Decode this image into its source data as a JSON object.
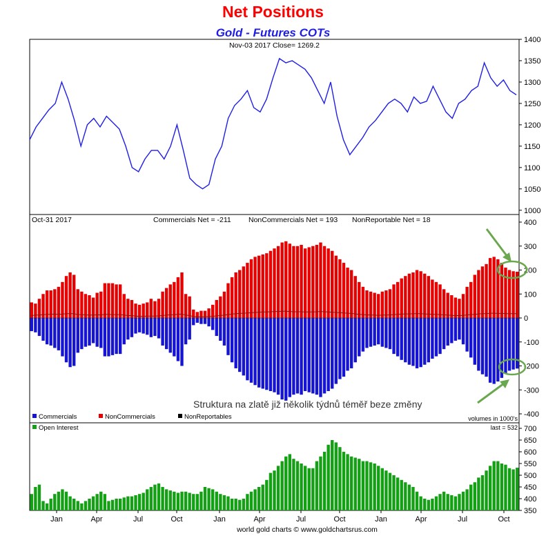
{
  "chart_data": [
    {
      "type": "line",
      "title": "Net Positions",
      "subtitle": "Gold - Futures COTs",
      "header": "Nov-03  2017    Close= 1269.2",
      "ylim": [
        990,
        1400
      ],
      "yticks": [
        1000,
        1050,
        1100,
        1150,
        1200,
        1250,
        1300,
        1350,
        1400
      ],
      "xticks": [
        "Jan",
        "Apr",
        "Jul",
        "Oct",
        "Jan",
        "Apr",
        "Jul",
        "Oct",
        "Jan",
        "Apr",
        "Jul",
        "Oct"
      ],
      "series": [
        {
          "values": [
            1165,
            1195,
            1215,
            1235,
            1250,
            1300,
            1260,
            1210,
            1150,
            1200,
            1215,
            1195,
            1220,
            1205,
            1190,
            1150,
            1100,
            1090,
            1120,
            1140,
            1140,
            1120,
            1150,
            1200,
            1140,
            1075,
            1060,
            1050,
            1060,
            1120,
            1150,
            1215,
            1245,
            1260,
            1280,
            1240,
            1230,
            1260,
            1310,
            1355,
            1345,
            1350,
            1340,
            1330,
            1310,
            1280,
            1250,
            1300,
            1220,
            1165,
            1130,
            1150,
            1170,
            1195,
            1210,
            1230,
            1250,
            1260,
            1250,
            1230,
            1265,
            1250,
            1255,
            1290,
            1260,
            1230,
            1215,
            1250,
            1260,
            1280,
            1290,
            1345,
            1310,
            1290,
            1305,
            1280,
            1270
          ],
          "color": "#1e1ee6"
        }
      ]
    },
    {
      "type": "bar",
      "header_left": "Oct-31  2017",
      "header_labels": [
        "Commercials Net = -211",
        "NonCommercials Net = 193",
        "NonReportable Net = 18"
      ],
      "ylim": [
        -400,
        400
      ],
      "yticks": [
        -400,
        -300,
        -200,
        -100,
        0,
        100,
        200,
        300,
        400
      ],
      "legend": [
        "Commercials",
        "NonCommercials",
        "NonReportables"
      ],
      "note": "volumes in 1000's",
      "annotation": "Struktura na zlatě již několik týdnů téměř beze změny",
      "series": [
        {
          "name": "NonCommercials",
          "color": "#e60000",
          "values": [
            65,
            60,
            80,
            100,
            115,
            115,
            120,
            130,
            150,
            175,
            190,
            180,
            120,
            110,
            100,
            95,
            85,
            105,
            110,
            145,
            145,
            145,
            140,
            140,
            100,
            80,
            75,
            60,
            55,
            60,
            65,
            80,
            70,
            80,
            110,
            125,
            140,
            150,
            170,
            190,
            100,
            90,
            35,
            25,
            30,
            30,
            40,
            55,
            75,
            90,
            110,
            145,
            170,
            190,
            200,
            215,
            230,
            245,
            255,
            260,
            265,
            270,
            280,
            290,
            300,
            315,
            320,
            310,
            300,
            300,
            305,
            290,
            295,
            300,
            305,
            315,
            300,
            290,
            280,
            260,
            245,
            230,
            210,
            200,
            175,
            150,
            130,
            115,
            110,
            105,
            100,
            110,
            115,
            120,
            140,
            150,
            165,
            175,
            185,
            190,
            200,
            195,
            185,
            175,
            160,
            150,
            140,
            120,
            105,
            95,
            85,
            80,
            100,
            130,
            150,
            180,
            200,
            215,
            225,
            250,
            255,
            245,
            230,
            210,
            200,
            195,
            193
          ]
        },
        {
          "name": "Commercials",
          "color": "#1414d2",
          "values": [
            -55,
            -60,
            -75,
            -95,
            -110,
            -115,
            -125,
            -135,
            -160,
            -185,
            -205,
            -200,
            -145,
            -130,
            -120,
            -115,
            -105,
            -120,
            -125,
            -160,
            -160,
            -155,
            -150,
            -150,
            -110,
            -90,
            -80,
            -65,
            -60,
            -65,
            -70,
            -80,
            -75,
            -85,
            -115,
            -130,
            -145,
            -160,
            -180,
            -200,
            -110,
            -90,
            -30,
            -20,
            -25,
            -25,
            -35,
            -50,
            -75,
            -95,
            -115,
            -155,
            -185,
            -210,
            -225,
            -240,
            -260,
            -270,
            -280,
            -290,
            -295,
            -300,
            -305,
            -310,
            -320,
            -340,
            -345,
            -330,
            -320,
            -315,
            -320,
            -305,
            -310,
            -315,
            -320,
            -330,
            -315,
            -305,
            -295,
            -275,
            -255,
            -245,
            -220,
            -210,
            -185,
            -160,
            -140,
            -125,
            -120,
            -115,
            -110,
            -120,
            -125,
            -130,
            -150,
            -160,
            -175,
            -185,
            -195,
            -200,
            -210,
            -205,
            -195,
            -185,
            -170,
            -160,
            -150,
            -130,
            -115,
            -105,
            -95,
            -90,
            -110,
            -140,
            -165,
            -195,
            -220,
            -235,
            -245,
            -270,
            -275,
            -265,
            -250,
            -230,
            -220,
            -215,
            -211
          ]
        },
        {
          "name": "NonReportables",
          "color": "#000000",
          "values": [
            10,
            12,
            12,
            14,
            15,
            15,
            16,
            15,
            16,
            18,
            18,
            18,
            14,
            14,
            13,
            12,
            12,
            13,
            13,
            15,
            15,
            14,
            14,
            14,
            12,
            10,
            10,
            8,
            7,
            7,
            8,
            8,
            8,
            9,
            10,
            12,
            13,
            14,
            15,
            16,
            12,
            10,
            6,
            5,
            5,
            5,
            6,
            7,
            9,
            10,
            12,
            14,
            16,
            18,
            19,
            20,
            21,
            22,
            23,
            24,
            25,
            25,
            26,
            27,
            27,
            28,
            28,
            27,
            26,
            26,
            26,
            25,
            25,
            25,
            26,
            27,
            26,
            25,
            24,
            23,
            22,
            21,
            20,
            19,
            17,
            15,
            14,
            13,
            12,
            12,
            11,
            12,
            12,
            13,
            14,
            15,
            16,
            17,
            17,
            18,
            18,
            18,
            17,
            16,
            15,
            15,
            14,
            13,
            12,
            11,
            10,
            10,
            11,
            13,
            14,
            15,
            17,
            18,
            18,
            20,
            20,
            19,
            19,
            18,
            18,
            18,
            18
          ]
        }
      ]
    },
    {
      "type": "bar",
      "legend": [
        "Open Interest"
      ],
      "note": "last = 532",
      "ylim": [
        350,
        700
      ],
      "yticks": [
        350,
        400,
        450,
        500,
        550,
        600,
        650,
        700
      ],
      "series": [
        {
          "name": "Open Interest",
          "color": "#14a014",
          "values": [
            420,
            450,
            460,
            390,
            380,
            400,
            420,
            430,
            440,
            430,
            410,
            400,
            390,
            380,
            390,
            400,
            410,
            420,
            430,
            420,
            390,
            395,
            400,
            400,
            405,
            410,
            410,
            415,
            420,
            425,
            440,
            450,
            460,
            465,
            450,
            440,
            435,
            430,
            425,
            430,
            430,
            425,
            420,
            420,
            430,
            450,
            445,
            440,
            430,
            420,
            415,
            410,
            400,
            400,
            395,
            400,
            420,
            430,
            440,
            450,
            460,
            480,
            510,
            520,
            540,
            560,
            580,
            590,
            570,
            560,
            550,
            540,
            530,
            530,
            560,
            580,
            600,
            630,
            650,
            640,
            620,
            600,
            590,
            580,
            575,
            570,
            560,
            560,
            555,
            550,
            540,
            530,
            520,
            510,
            500,
            490,
            480,
            470,
            460,
            450,
            430,
            410,
            400,
            395,
            400,
            410,
            420,
            430,
            420,
            415,
            410,
            420,
            430,
            440,
            460,
            470,
            490,
            500,
            520,
            540,
            560,
            560,
            550,
            545,
            530,
            525,
            532
          ]
        }
      ]
    }
  ],
  "footer": "world gold charts © www.goldchartsrus.com"
}
